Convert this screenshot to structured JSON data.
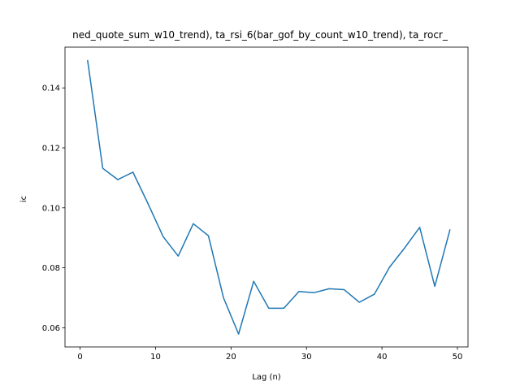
{
  "chart_data": {
    "type": "line",
    "title": "ned_quote_sum_w10_trend), ta_rsi_6(bar_gof_by_count_w10_trend), ta_rocr_",
    "xlabel": "Lag (n)",
    "ylabel": "ic",
    "xlim": [
      -2.0,
      51.4
    ],
    "ylim": [
      0.0536,
      0.1536
    ],
    "xticks": [
      0,
      10,
      20,
      30,
      40,
      50
    ],
    "yticks": [
      0.06,
      0.08,
      0.1,
      0.12,
      0.14
    ],
    "ytick_labels": [
      "0.06",
      "0.08",
      "0.10",
      "0.12",
      "0.14"
    ],
    "grid": false,
    "line_color": "#1f77b4",
    "series": [
      {
        "x": [
          1,
          3,
          5,
          7,
          9,
          11,
          13,
          15,
          17,
          19,
          21,
          23,
          25,
          27,
          29,
          31,
          33,
          35,
          37,
          39,
          41,
          43,
          45,
          47,
          49
        ],
        "values": [
          0.1491,
          0.1132,
          0.1094,
          0.1119,
          0.1014,
          0.0904,
          0.0839,
          0.0947,
          0.0907,
          0.07,
          0.0579,
          0.0755,
          0.0665,
          0.0665,
          0.0721,
          0.0717,
          0.073,
          0.0727,
          0.0685,
          0.0712,
          0.0802,
          0.0866,
          0.0935,
          0.0738,
          0.0926
        ]
      }
    ]
  }
}
